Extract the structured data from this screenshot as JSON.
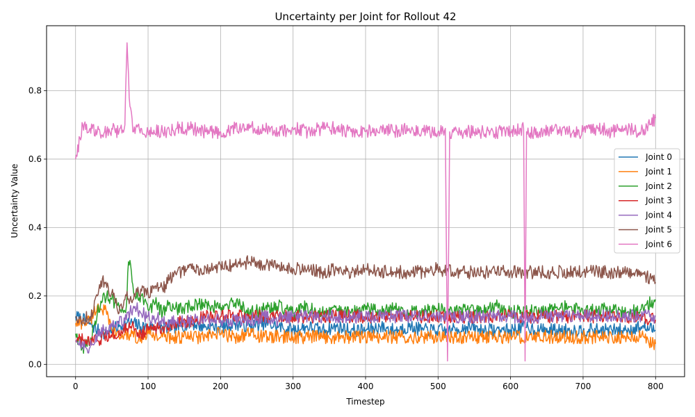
{
  "chart_data": {
    "type": "line",
    "title": "Uncertainty per Joint for Rollout 42",
    "xlabel": "Timestep",
    "ylabel": "Uncertainty Value",
    "xlim": [
      -40,
      840
    ],
    "ylim": [
      -0.036,
      0.99
    ],
    "xticks": [
      "0",
      "100",
      "200",
      "300",
      "400",
      "500",
      "600",
      "700",
      "800"
    ],
    "yticks": [
      "0.0",
      "0.2",
      "0.4",
      "0.6",
      "0.8"
    ],
    "grid": true,
    "legend_position": "right",
    "series": [
      {
        "name": "Joint 0",
        "color": "#1f77b4",
        "x": [
          0,
          10,
          20,
          30,
          40,
          50,
          60,
          70,
          80,
          90,
          100,
          120,
          140,
          160,
          180,
          200,
          220,
          240,
          260,
          280,
          300,
          320,
          340,
          360,
          380,
          400,
          420,
          440,
          460,
          480,
          500,
          520,
          540,
          560,
          580,
          600,
          620,
          640,
          660,
          680,
          700,
          720,
          740,
          760,
          780,
          800
        ],
        "values": [
          0.14,
          0.13,
          0.12,
          0.1,
          0.09,
          0.1,
          0.11,
          0.12,
          0.12,
          0.11,
          0.11,
          0.11,
          0.11,
          0.12,
          0.11,
          0.11,
          0.12,
          0.11,
          0.12,
          0.11,
          0.1,
          0.11,
          0.1,
          0.11,
          0.1,
          0.1,
          0.11,
          0.1,
          0.11,
          0.1,
          0.1,
          0.1,
          0.11,
          0.1,
          0.1,
          0.1,
          0.11,
          0.1,
          0.1,
          0.1,
          0.1,
          0.1,
          0.1,
          0.1,
          0.11,
          0.1
        ]
      },
      {
        "name": "Joint 1",
        "color": "#ff7f0e",
        "x": [
          0,
          10,
          20,
          25,
          30,
          40,
          50,
          60,
          70,
          80,
          90,
          100,
          120,
          140,
          160,
          180,
          200,
          220,
          240,
          260,
          280,
          300,
          320,
          340,
          360,
          380,
          400,
          420,
          440,
          460,
          480,
          500,
          520,
          540,
          560,
          580,
          600,
          620,
          640,
          660,
          680,
          700,
          720,
          740,
          760,
          780,
          800
        ],
        "values": [
          0.12,
          0.12,
          0.13,
          0.15,
          0.17,
          0.16,
          0.1,
          0.08,
          0.09,
          0.08,
          0.08,
          0.09,
          0.08,
          0.08,
          0.08,
          0.08,
          0.09,
          0.08,
          0.09,
          0.08,
          0.08,
          0.08,
          0.08,
          0.08,
          0.08,
          0.08,
          0.08,
          0.08,
          0.08,
          0.08,
          0.08,
          0.08,
          0.08,
          0.08,
          0.08,
          0.08,
          0.08,
          0.08,
          0.08,
          0.08,
          0.08,
          0.08,
          0.08,
          0.08,
          0.08,
          0.08,
          0.06
        ]
      },
      {
        "name": "Joint 2",
        "color": "#2ca02c",
        "x": [
          0,
          10,
          20,
          30,
          40,
          50,
          60,
          70,
          73,
          76,
          80,
          90,
          100,
          110,
          120,
          130,
          140,
          160,
          180,
          200,
          220,
          240,
          260,
          280,
          300,
          320,
          340,
          360,
          380,
          400,
          420,
          440,
          460,
          480,
          500,
          520,
          540,
          560,
          580,
          600,
          620,
          640,
          660,
          680,
          700,
          720,
          740,
          760,
          780,
          800
        ],
        "values": [
          0.09,
          0.05,
          0.06,
          0.15,
          0.2,
          0.19,
          0.17,
          0.17,
          0.3,
          0.29,
          0.21,
          0.2,
          0.16,
          0.18,
          0.15,
          0.18,
          0.16,
          0.17,
          0.18,
          0.16,
          0.18,
          0.15,
          0.16,
          0.17,
          0.15,
          0.17,
          0.15,
          0.16,
          0.15,
          0.16,
          0.16,
          0.17,
          0.15,
          0.16,
          0.16,
          0.15,
          0.16,
          0.15,
          0.17,
          0.15,
          0.16,
          0.15,
          0.16,
          0.17,
          0.15,
          0.16,
          0.16,
          0.15,
          0.16,
          0.19
        ]
      },
      {
        "name": "Joint 3",
        "color": "#d62728",
        "x": [
          0,
          10,
          20,
          30,
          40,
          50,
          60,
          70,
          80,
          90,
          100,
          120,
          140,
          160,
          180,
          200,
          220,
          240,
          260,
          280,
          300,
          320,
          340,
          360,
          380,
          400,
          420,
          440,
          460,
          480,
          500,
          520,
          540,
          560,
          580,
          600,
          620,
          640,
          660,
          680,
          700,
          720,
          740,
          760,
          780,
          800
        ],
        "values": [
          0.07,
          0.07,
          0.06,
          0.07,
          0.08,
          0.08,
          0.1,
          0.1,
          0.11,
          0.09,
          0.1,
          0.11,
          0.12,
          0.13,
          0.14,
          0.14,
          0.14,
          0.14,
          0.14,
          0.14,
          0.14,
          0.14,
          0.14,
          0.14,
          0.14,
          0.14,
          0.14,
          0.14,
          0.14,
          0.14,
          0.14,
          0.14,
          0.14,
          0.14,
          0.14,
          0.14,
          0.14,
          0.14,
          0.14,
          0.14,
          0.14,
          0.14,
          0.14,
          0.14,
          0.14,
          0.13
        ]
      },
      {
        "name": "Joint 4",
        "color": "#9467bd",
        "x": [
          0,
          10,
          20,
          30,
          40,
          50,
          60,
          70,
          80,
          90,
          100,
          120,
          140,
          160,
          180,
          200,
          220,
          240,
          260,
          280,
          300,
          320,
          340,
          360,
          380,
          400,
          420,
          440,
          460,
          480,
          500,
          520,
          540,
          560,
          580,
          600,
          620,
          640,
          660,
          680,
          700,
          720,
          740,
          760,
          780,
          800
        ],
        "values": [
          0.07,
          0.06,
          0.05,
          0.08,
          0.1,
          0.11,
          0.12,
          0.13,
          0.17,
          0.15,
          0.14,
          0.13,
          0.12,
          0.13,
          0.13,
          0.13,
          0.13,
          0.13,
          0.14,
          0.13,
          0.14,
          0.14,
          0.14,
          0.14,
          0.14,
          0.14,
          0.14,
          0.14,
          0.14,
          0.14,
          0.14,
          0.14,
          0.14,
          0.14,
          0.14,
          0.14,
          0.14,
          0.14,
          0.14,
          0.14,
          0.14,
          0.14,
          0.14,
          0.14,
          0.14,
          0.14
        ]
      },
      {
        "name": "Joint 5",
        "color": "#8c564b",
        "x": [
          0,
          10,
          20,
          30,
          37,
          40,
          50,
          60,
          70,
          80,
          90,
          100,
          110,
          120,
          130,
          140,
          160,
          180,
          200,
          220,
          240,
          260,
          280,
          300,
          320,
          340,
          360,
          380,
          400,
          420,
          440,
          460,
          480,
          500,
          520,
          540,
          560,
          580,
          600,
          620,
          640,
          660,
          680,
          700,
          720,
          740,
          760,
          780,
          800
        ],
        "values": [
          0.14,
          0.13,
          0.14,
          0.2,
          0.25,
          0.24,
          0.21,
          0.15,
          0.2,
          0.19,
          0.22,
          0.21,
          0.23,
          0.22,
          0.25,
          0.27,
          0.28,
          0.28,
          0.29,
          0.29,
          0.3,
          0.29,
          0.29,
          0.28,
          0.28,
          0.27,
          0.28,
          0.27,
          0.28,
          0.27,
          0.27,
          0.27,
          0.27,
          0.28,
          0.27,
          0.27,
          0.27,
          0.27,
          0.27,
          0.27,
          0.27,
          0.27,
          0.27,
          0.27,
          0.27,
          0.27,
          0.27,
          0.27,
          0.24
        ]
      },
      {
        "name": "Joint 6",
        "color": "#e377c2",
        "x": [
          0,
          10,
          20,
          30,
          40,
          50,
          60,
          68,
          71,
          74,
          80,
          90,
          100,
          120,
          140,
          160,
          180,
          200,
          220,
          240,
          260,
          280,
          300,
          320,
          340,
          360,
          380,
          400,
          420,
          440,
          460,
          480,
          500,
          510,
          513,
          516,
          530,
          560,
          600,
          618,
          620,
          622,
          640,
          660,
          680,
          700,
          720,
          740,
          760,
          780,
          800
        ],
        "values": [
          0.6,
          0.7,
          0.69,
          0.68,
          0.68,
          0.69,
          0.68,
          0.7,
          0.94,
          0.78,
          0.68,
          0.69,
          0.68,
          0.68,
          0.69,
          0.69,
          0.68,
          0.68,
          0.69,
          0.69,
          0.69,
          0.68,
          0.69,
          0.68,
          0.69,
          0.69,
          0.68,
          0.68,
          0.69,
          0.68,
          0.69,
          0.68,
          0.68,
          0.69,
          0.01,
          0.68,
          0.68,
          0.68,
          0.68,
          0.69,
          0.01,
          0.68,
          0.68,
          0.69,
          0.68,
          0.68,
          0.69,
          0.68,
          0.69,
          0.68,
          0.72
        ]
      }
    ]
  }
}
